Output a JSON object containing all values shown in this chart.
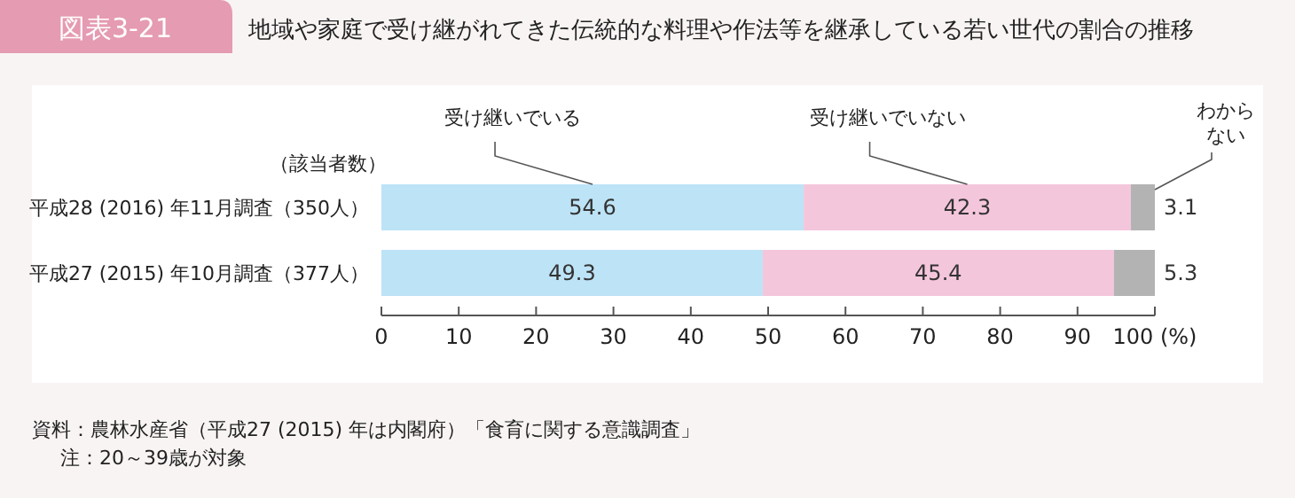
{
  "chart_data": {
    "type": "bar",
    "orientation": "horizontal",
    "stacked": true,
    "title": "図表3-21",
    "subtitle": "地域や家庭で受け継がれてきた伝統的な料理や作法等を継承している若い世代の割合の推移",
    "categories": [
      "平成28 (2016) 年11月調査（350人）",
      "平成27 (2015) 年10月調査（377人）"
    ],
    "series": [
      {
        "name": "受け継いでいる",
        "color": "#bde3f6",
        "values": [
          54.6,
          49.3
        ]
      },
      {
        "name": "受け継いでいない",
        "color": "#f4c6dc",
        "values": [
          42.3,
          45.4
        ]
      },
      {
        "name": "わからない",
        "color": "#b3b3b3",
        "values": [
          3.1,
          5.3
        ]
      }
    ],
    "xlim": [
      0,
      100
    ],
    "xticks": [
      0,
      10,
      20,
      30,
      40,
      50,
      60,
      70,
      80,
      90,
      {
        "value": 100,
        "label": "100 (%)"
      }
    ],
    "data_labels": true,
    "annotations": [
      "（該当者数）",
      "資料：農林水産省（平成27 (2015) 年は内閣府）「食育に関する意識調査」",
      "注：20～39歳が対象"
    ]
  }
}
